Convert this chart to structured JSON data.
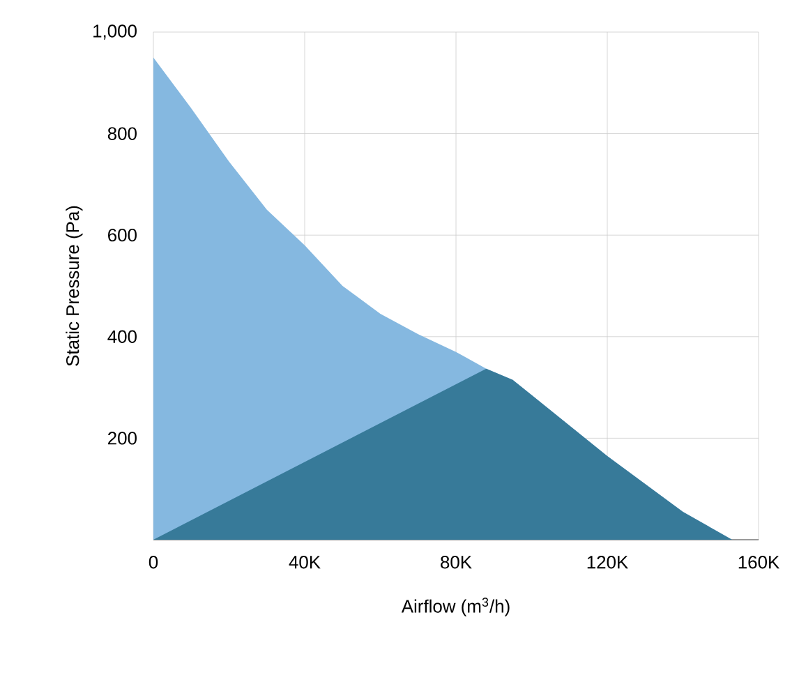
{
  "chart_data": {
    "type": "area",
    "xlabel": "Airflow (m$^{3}$/h)",
    "ylabel": "Static Pressure (Pa)",
    "xlim": [
      0,
      160000
    ],
    "ylim": [
      0,
      1000
    ],
    "xticks": [
      0,
      {
        "value": 40000,
        "label": "40K"
      },
      {
        "value": 80000,
        "label": "80K"
      },
      {
        "value": 120000,
        "label": "120K"
      },
      {
        "value": 160000,
        "label": "160K"
      }
    ],
    "yticks": [
      200,
      400,
      600,
      800,
      {
        "value": 1000,
        "label": "1,000"
      }
    ],
    "grid": true,
    "series": [
      {
        "color": "#85b8e0",
        "x": [
          0,
          10000,
          20000,
          30000,
          40000,
          50000,
          60000,
          70000,
          80000,
          88000,
          95000,
          100000,
          110000,
          120000,
          130000,
          140000,
          153000
        ],
        "values": [
          950,
          850,
          745,
          650,
          580,
          500,
          445,
          405,
          370,
          337,
          315,
          285,
          225,
          165,
          110,
          55,
          0
        ]
      },
      {
        "color": "#377a99",
        "x": [
          0,
          88000,
          95000,
          100000,
          110000,
          120000,
          130000,
          140000,
          153000
        ],
        "values": [
          0,
          337,
          315,
          285,
          225,
          165,
          110,
          55,
          0
        ]
      }
    ]
  }
}
